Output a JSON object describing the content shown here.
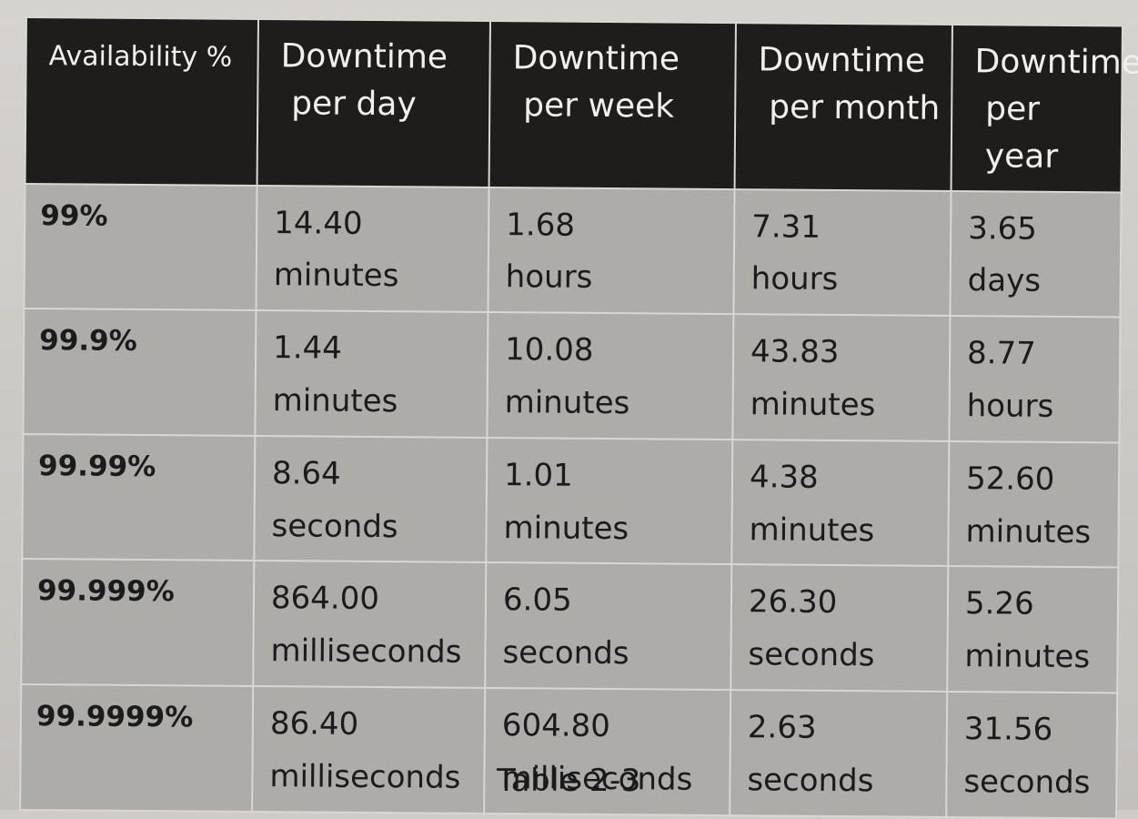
{
  "table": {
    "headers": [
      {
        "line1": "Availability %",
        "line2": ""
      },
      {
        "line1": "Downtime",
        "line2": "per day"
      },
      {
        "line1": "Downtime",
        "line2": "per week"
      },
      {
        "line1": "Downtime",
        "line2": "per month"
      },
      {
        "line1": "Downtime",
        "line2": "per year"
      }
    ],
    "rows": [
      {
        "availability": "99%",
        "cells": [
          {
            "value": "14.40",
            "unit": "minutes"
          },
          {
            "value": "1.68",
            "unit": "hours"
          },
          {
            "value": "7.31",
            "unit": "hours"
          },
          {
            "value": "3.65",
            "unit": "days"
          }
        ]
      },
      {
        "availability": "99.9%",
        "cells": [
          {
            "value": "1.44",
            "unit": "minutes"
          },
          {
            "value": "10.08",
            "unit": "minutes"
          },
          {
            "value": "43.83",
            "unit": "minutes"
          },
          {
            "value": "8.77",
            "unit": "hours"
          }
        ]
      },
      {
        "availability": "99.99%",
        "cells": [
          {
            "value": "8.64",
            "unit": "seconds"
          },
          {
            "value": "1.01",
            "unit": "minutes"
          },
          {
            "value": "4.38",
            "unit": "minutes"
          },
          {
            "value": "52.60",
            "unit": "minutes"
          }
        ]
      },
      {
        "availability": "99.999%",
        "cells": [
          {
            "value": "864.00",
            "unit": "milliseconds"
          },
          {
            "value": "6.05",
            "unit": "seconds"
          },
          {
            "value": "26.30",
            "unit": "seconds"
          },
          {
            "value": "5.26",
            "unit": "minutes"
          }
        ]
      },
      {
        "availability": "99.9999%",
        "cells": [
          {
            "value": "86.40",
            "unit": "milliseconds"
          },
          {
            "value": "604.80",
            "unit": "milliseconds"
          },
          {
            "value": "2.63",
            "unit": "seconds"
          },
          {
            "value": "31.56",
            "unit": "seconds"
          }
        ]
      }
    ]
  },
  "caption": "Table 2-3",
  "colors": {
    "header_bg": "#1f1c1c",
    "header_text": "#f1efec",
    "cell_bg": "#aeaca9",
    "grid_line": "#d9d7d3"
  }
}
